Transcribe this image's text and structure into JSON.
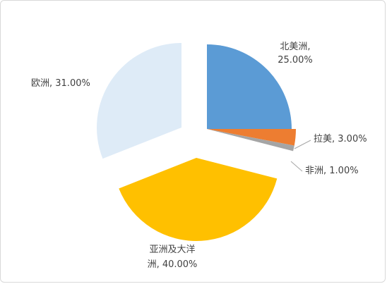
{
  "chart_data": {
    "type": "pie",
    "title": "",
    "exploded": true,
    "slices": [
      {
        "name": "北美洲",
        "value": 25.0,
        "label_lines": [
          "北美洲,",
          "25.00%"
        ],
        "color": "#5b9bd5"
      },
      {
        "name": "拉美",
        "value": 3.0,
        "label_lines": [
          "拉美, 3.00%"
        ],
        "color": "#ed7d31"
      },
      {
        "name": "非洲",
        "value": 1.0,
        "label_lines": [
          "非洲, 1.00%"
        ],
        "color": "#a5a5a5"
      },
      {
        "name": "亚洲及大洋洲",
        "value": 40.0,
        "label_lines": [
          "亚洲及大洋",
          "洲, 40.00%"
        ],
        "color": "#ffc000"
      },
      {
        "name": "欧洲",
        "value": 31.0,
        "label_lines": [
          "欧洲, 31.00%"
        ],
        "color": "#deebf7"
      }
    ]
  }
}
